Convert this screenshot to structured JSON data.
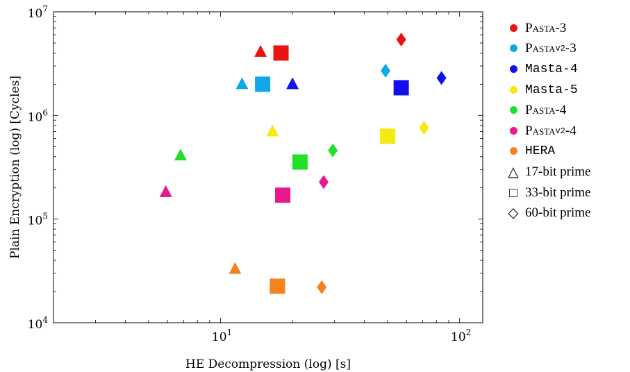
{
  "chart_data": {
    "type": "scatter",
    "xlabel": "HE Decompression (log) [s]",
    "ylabel": "Plain Encryption (log) [Cycles]",
    "xscale": "log",
    "yscale": "log",
    "xlim": [
      2,
      125
    ],
    "ylim": [
      10000,
      10000000
    ],
    "x_ticks": [
      10,
      100
    ],
    "y_ticks": [
      10000,
      100000,
      1000000,
      10000000
    ],
    "grid": false,
    "legend_position": "outside-right",
    "series": [
      {
        "name": "Pasta-3",
        "name_main": "Pasta",
        "name_sub": "",
        "name_suffix": "-3",
        "style": "smallcaps",
        "color": "#ee1111",
        "points": [
          {
            "x": 14.7,
            "y": 4100000,
            "marker": "triangle"
          },
          {
            "x": 17.9,
            "y": 4000000,
            "marker": "square"
          },
          {
            "x": 57,
            "y": 5400000,
            "marker": "diamond"
          }
        ]
      },
      {
        "name": "Pasta_v2-3",
        "name_main": "Pasta",
        "name_sub": "v2",
        "name_suffix": "-3",
        "style": "smallcaps",
        "color": "#11a6e6",
        "points": [
          {
            "x": 12.3,
            "y": 2000000,
            "marker": "triangle"
          },
          {
            "x": 15,
            "y": 2000000,
            "marker": "square"
          },
          {
            "x": 49,
            "y": 2700000,
            "marker": "diamond"
          }
        ]
      },
      {
        "name": "Masta-4",
        "name_main": "Masta",
        "name_sub": "",
        "name_suffix": "-4",
        "style": "mono",
        "color": "#1111ee",
        "points": [
          {
            "x": 20,
            "y": 2000000,
            "marker": "triangle"
          },
          {
            "x": 57,
            "y": 1850000,
            "marker": "square"
          },
          {
            "x": 84,
            "y": 2300000,
            "marker": "diamond"
          }
        ]
      },
      {
        "name": "Masta-5",
        "name_main": "Masta",
        "name_sub": "",
        "name_suffix": "-5",
        "style": "mono",
        "color": "#f5ea10",
        "points": [
          {
            "x": 16.5,
            "y": 700000,
            "marker": "triangle"
          },
          {
            "x": 50,
            "y": 630000,
            "marker": "square"
          },
          {
            "x": 71,
            "y": 760000,
            "marker": "diamond"
          }
        ]
      },
      {
        "name": "Pasta-4",
        "name_main": "Pasta",
        "name_sub": "",
        "name_suffix": "-4",
        "style": "smallcaps",
        "color": "#22e02a",
        "points": [
          {
            "x": 6.8,
            "y": 410000,
            "marker": "triangle"
          },
          {
            "x": 21.5,
            "y": 355000,
            "marker": "square"
          },
          {
            "x": 29.5,
            "y": 460000,
            "marker": "diamond"
          }
        ]
      },
      {
        "name": "Pasta_v2-4",
        "name_main": "Pasta",
        "name_sub": "v2",
        "name_suffix": "-4",
        "style": "smallcaps",
        "color": "#e8198f",
        "points": [
          {
            "x": 5.9,
            "y": 182000,
            "marker": "triangle"
          },
          {
            "x": 18.2,
            "y": 170000,
            "marker": "square"
          },
          {
            "x": 27,
            "y": 228000,
            "marker": "diamond"
          }
        ]
      },
      {
        "name": "HERA",
        "name_main": "HERA",
        "name_sub": "",
        "name_suffix": "",
        "style": "mono",
        "color": "#f58220",
        "points": [
          {
            "x": 11.5,
            "y": 33000,
            "marker": "triangle"
          },
          {
            "x": 17.3,
            "y": 22500,
            "marker": "square"
          },
          {
            "x": 26.5,
            "y": 22000,
            "marker": "diamond"
          }
        ]
      }
    ],
    "marker_legend": [
      {
        "marker": "triangle",
        "symbol": "△",
        "label": "17-bit prime"
      },
      {
        "marker": "square",
        "symbol": "□",
        "label": "33-bit prime"
      },
      {
        "marker": "diamond",
        "symbol": "◇",
        "label": "60-bit prime"
      }
    ]
  }
}
